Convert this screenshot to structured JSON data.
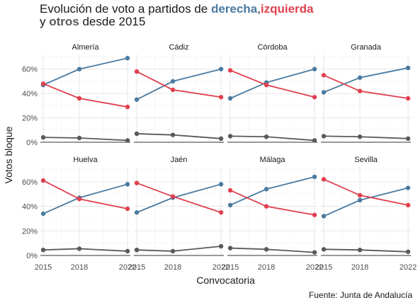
{
  "title": {
    "line1_prefix": "Evolución  de voto a partidos de ",
    "derecha": "derecha",
    "comma": ",",
    "izquierda": "izquierda",
    "line2_prefix": "y ",
    "otros": "otros",
    "line2_suffix": " desde 2015"
  },
  "source": "Fuente: Junta de Andalucía",
  "colors": {
    "derecha": "#4a7aa0",
    "izquierda": "#e0404f",
    "otros": "#595959"
  },
  "chart_data": {
    "type": "line",
    "facet": true,
    "xlabel": "Convocatoria",
    "ylabel": "Votos bloque",
    "x": [
      2015,
      2018,
      2022
    ],
    "x_ticks": [
      "2015",
      "2018",
      "2022"
    ],
    "ylim": [
      0,
      0.72
    ],
    "y_ticks": [
      0,
      0.2,
      0.4,
      0.6
    ],
    "y_tick_labels": [
      "0%",
      "20%",
      "40%",
      "60%"
    ],
    "grid": true,
    "legend": "none",
    "panels": [
      {
        "name": "Almería",
        "series": [
          {
            "key": "derecha",
            "values": [
              0.47,
              0.6,
              0.69
            ]
          },
          {
            "key": "izquierda",
            "values": [
              0.48,
              0.36,
              0.29
            ]
          },
          {
            "key": "otros",
            "values": [
              0.04,
              0.035,
              0.015
            ]
          }
        ]
      },
      {
        "name": "Cádiz",
        "series": [
          {
            "key": "derecha",
            "values": [
              0.35,
              0.5,
              0.6
            ]
          },
          {
            "key": "izquierda",
            "values": [
              0.58,
              0.43,
              0.37
            ]
          },
          {
            "key": "otros",
            "values": [
              0.07,
              0.06,
              0.03
            ]
          }
        ]
      },
      {
        "name": "Córdoba",
        "series": [
          {
            "key": "derecha",
            "values": [
              0.36,
              0.49,
              0.6
            ]
          },
          {
            "key": "izquierda",
            "values": [
              0.59,
              0.47,
              0.37
            ]
          },
          {
            "key": "otros",
            "values": [
              0.05,
              0.045,
              0.015
            ]
          }
        ]
      },
      {
        "name": "Granada",
        "series": [
          {
            "key": "derecha",
            "values": [
              0.41,
              0.53,
              0.61
            ]
          },
          {
            "key": "izquierda",
            "values": [
              0.55,
              0.42,
              0.36
            ]
          },
          {
            "key": "otros",
            "values": [
              0.05,
              0.045,
              0.03
            ]
          }
        ]
      },
      {
        "name": "Huelva",
        "series": [
          {
            "key": "derecha",
            "values": [
              0.34,
              0.47,
              0.58
            ]
          },
          {
            "key": "izquierda",
            "values": [
              0.61,
              0.46,
              0.38
            ]
          },
          {
            "key": "otros",
            "values": [
              0.045,
              0.055,
              0.035
            ]
          }
        ]
      },
      {
        "name": "Jaén",
        "series": [
          {
            "key": "derecha",
            "values": [
              0.35,
              0.47,
              0.58
            ]
          },
          {
            "key": "izquierda",
            "values": [
              0.59,
              0.48,
              0.35
            ]
          },
          {
            "key": "otros",
            "values": [
              0.045,
              0.035,
              0.075
            ]
          }
        ]
      },
      {
        "name": "Málaga",
        "series": [
          {
            "key": "derecha",
            "values": [
              0.41,
              0.54,
              0.64
            ]
          },
          {
            "key": "izquierda",
            "values": [
              0.53,
              0.4,
              0.33
            ]
          },
          {
            "key": "otros",
            "values": [
              0.06,
              0.05,
              0.025
            ]
          }
        ]
      },
      {
        "name": "Sevilla",
        "series": [
          {
            "key": "derecha",
            "values": [
              0.32,
              0.45,
              0.55
            ]
          },
          {
            "key": "izquierda",
            "values": [
              0.62,
              0.49,
              0.41
            ]
          },
          {
            "key": "otros",
            "values": [
              0.05,
              0.045,
              0.03
            ]
          }
        ]
      }
    ]
  }
}
